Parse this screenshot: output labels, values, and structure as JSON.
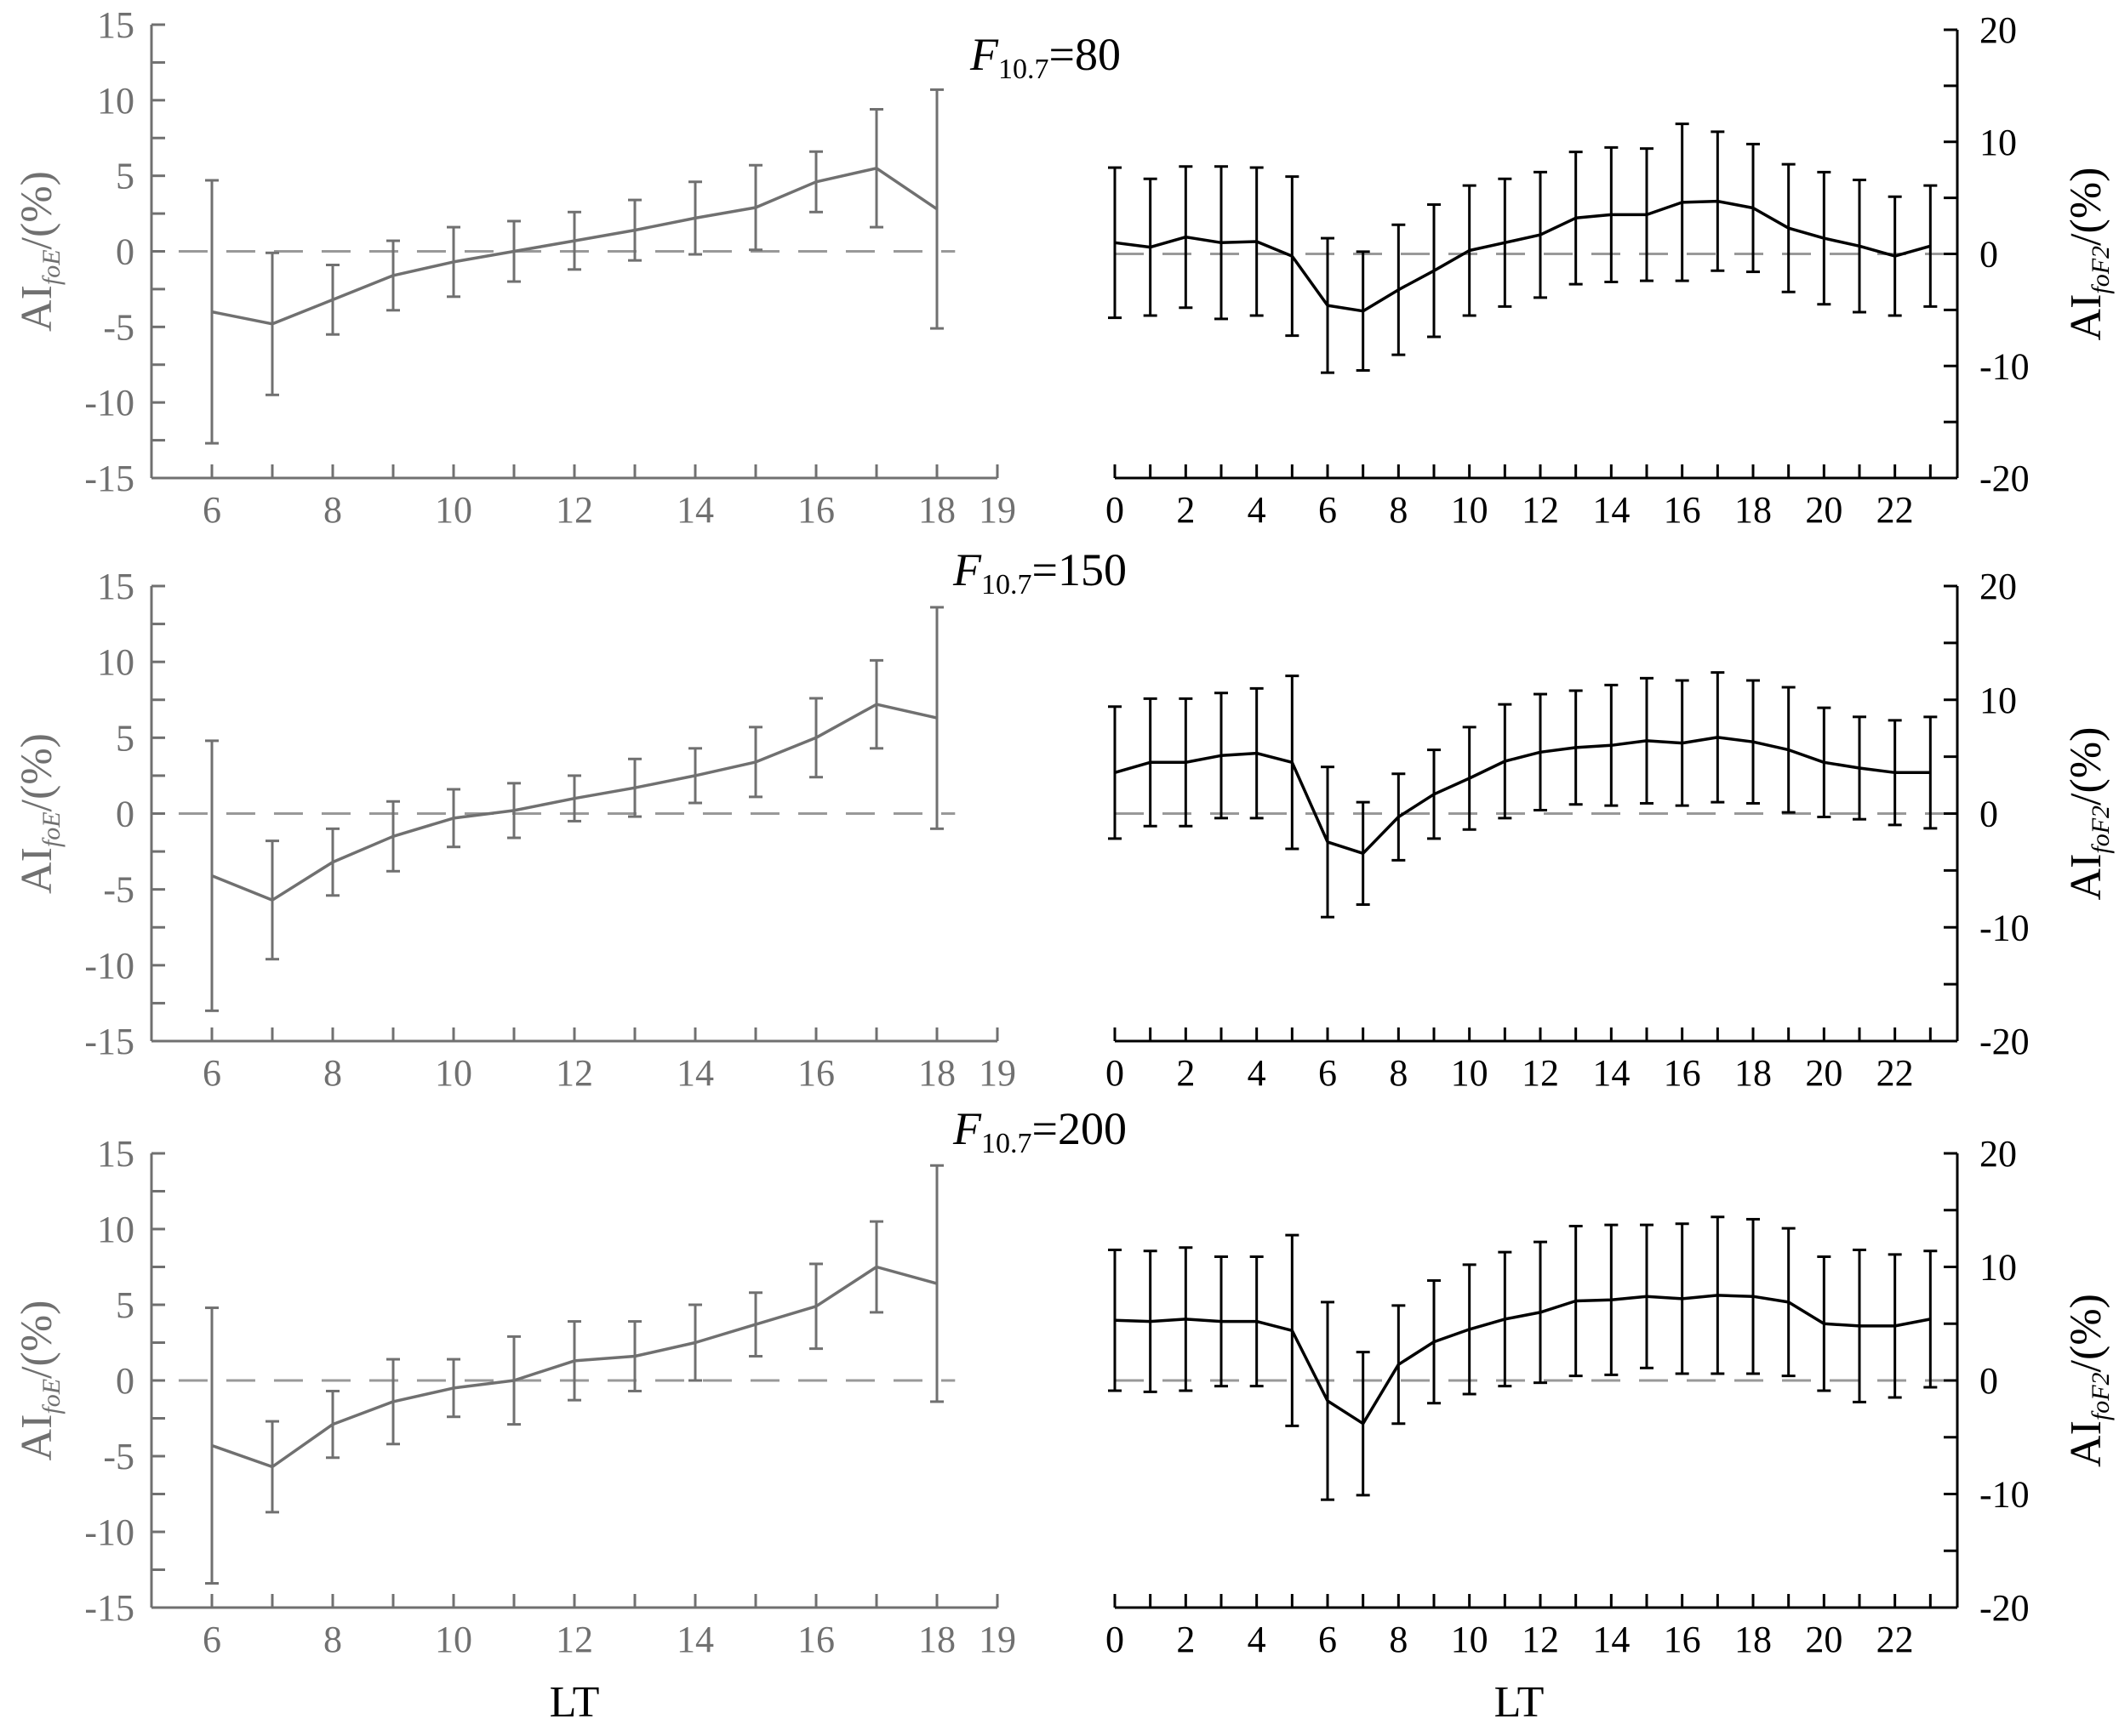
{
  "chart_data": [
    {
      "type": "line",
      "title_var": "F",
      "title_sub": "10.7",
      "title_val": "=80",
      "xlabel": "",
      "ylabel_main": "AI",
      "ylabel_sub": "foE",
      "ylabel_unit": "/(%)",
      "xlim": [
        5,
        19
      ],
      "ylim": [
        -15,
        15
      ],
      "xticks": [
        6,
        8,
        10,
        12,
        14,
        16,
        18,
        19
      ],
      "yticks": [
        -15,
        -10,
        -5,
        0,
        5,
        10,
        15
      ],
      "reference_line": 0,
      "color": "#707070",
      "x": [
        6,
        7,
        8,
        9,
        10,
        11,
        12,
        13,
        14,
        15,
        16,
        17,
        18
      ],
      "y": [
        -4.0,
        -4.8,
        -3.2,
        -1.6,
        -0.7,
        0.0,
        0.7,
        1.4,
        2.2,
        2.9,
        4.6,
        5.5,
        2.8
      ],
      "err": [
        8.7,
        4.7,
        2.3,
        2.3,
        2.3,
        2.0,
        1.9,
        2.0,
        2.4,
        2.8,
        2.0,
        3.9,
        7.9
      ]
    },
    {
      "type": "line",
      "xlabel": "",
      "ylabel_main": "AI",
      "ylabel_sub": "foF2",
      "ylabel_unit": "/(%)",
      "xlim": [
        0,
        24
      ],
      "ylim": [
        -20,
        20
      ],
      "xticks": [
        0,
        2,
        4,
        6,
        8,
        10,
        12,
        14,
        16,
        18,
        20,
        22
      ],
      "yticks": [
        -20,
        -10,
        0,
        10,
        20
      ],
      "reference_line": 0,
      "color": "#000000",
      "x": [
        0,
        1,
        2,
        3,
        4,
        5,
        6,
        7,
        8,
        9,
        10,
        11,
        12,
        13,
        14,
        15,
        16,
        17,
        18,
        19,
        20,
        21,
        22,
        23
      ],
      "y": [
        1.0,
        0.6,
        1.5,
        1.0,
        1.1,
        -0.2,
        -4.6,
        -5.1,
        -3.2,
        -1.5,
        0.3,
        1.0,
        1.7,
        3.2,
        3.5,
        3.5,
        4.6,
        4.7,
        4.1,
        2.3,
        1.4,
        0.7,
        -0.2,
        0.7
      ],
      "err": [
        6.7,
        6.1,
        6.3,
        6.8,
        6.6,
        7.1,
        6.0,
        5.3,
        5.8,
        5.9,
        5.8,
        5.7,
        5.6,
        5.9,
        6.0,
        5.9,
        7.0,
        6.2,
        5.7,
        5.7,
        5.9,
        5.9,
        5.3,
        5.4
      ]
    },
    {
      "type": "line",
      "title_var": "F",
      "title_sub": "10.7",
      "title_val": "=150",
      "xlabel": "",
      "ylabel_main": "AI",
      "ylabel_sub": "foE",
      "ylabel_unit": "/(%)",
      "xlim": [
        5,
        19
      ],
      "ylim": [
        -15,
        15
      ],
      "xticks": [
        6,
        8,
        10,
        12,
        14,
        16,
        18,
        19
      ],
      "yticks": [
        -15,
        -10,
        -5,
        0,
        5,
        10,
        15
      ],
      "reference_line": 0,
      "color": "#707070",
      "x": [
        6,
        7,
        8,
        9,
        10,
        11,
        12,
        13,
        14,
        15,
        16,
        17,
        18
      ],
      "y": [
        -4.1,
        -5.7,
        -3.2,
        -1.5,
        -0.3,
        0.2,
        1.0,
        1.7,
        2.5,
        3.4,
        5.0,
        7.2,
        6.3
      ],
      "err": [
        8.9,
        3.9,
        2.2,
        2.3,
        1.9,
        1.8,
        1.5,
        1.9,
        1.8,
        2.3,
        2.6,
        2.9,
        7.3
      ]
    },
    {
      "type": "line",
      "xlabel": "",
      "ylabel_main": "AI",
      "ylabel_sub": "foF2",
      "ylabel_unit": "/(%)",
      "xlim": [
        0,
        24
      ],
      "ylim": [
        -20,
        20
      ],
      "xticks": [
        0,
        2,
        4,
        6,
        8,
        10,
        12,
        14,
        16,
        18,
        20,
        22
      ],
      "yticks": [
        -20,
        -10,
        0,
        10,
        20
      ],
      "reference_line": 0,
      "color": "#000000",
      "x": [
        0,
        1,
        2,
        3,
        4,
        5,
        6,
        7,
        8,
        9,
        10,
        11,
        12,
        13,
        14,
        15,
        16,
        17,
        18,
        19,
        20,
        21,
        22,
        23
      ],
      "y": [
        3.6,
        4.5,
        4.5,
        5.1,
        5.3,
        4.5,
        -2.5,
        -3.5,
        -0.3,
        1.7,
        3.1,
        4.6,
        5.4,
        5.8,
        6.0,
        6.4,
        6.2,
        6.7,
        6.3,
        5.6,
        4.5,
        4.0,
        3.6,
        3.6
      ],
      "err": [
        5.8,
        5.6,
        5.6,
        5.5,
        5.7,
        7.6,
        6.6,
        4.5,
        3.8,
        3.9,
        4.5,
        5.0,
        5.1,
        5.0,
        5.3,
        5.5,
        5.5,
        5.7,
        5.4,
        5.5,
        4.8,
        4.5,
        4.6,
        4.9
      ]
    },
    {
      "type": "line",
      "title_var": "F",
      "title_sub": "10.7",
      "title_val": "=200",
      "xlabel": "LT",
      "ylabel_main": "AI",
      "ylabel_sub": "foE",
      "ylabel_unit": "/(%)",
      "xlim": [
        5,
        19
      ],
      "ylim": [
        -15,
        15
      ],
      "xticks": [
        6,
        8,
        10,
        12,
        14,
        16,
        18,
        19
      ],
      "yticks": [
        -15,
        -10,
        -5,
        0,
        5,
        10,
        15
      ],
      "reference_line": 0,
      "color": "#707070",
      "x": [
        6,
        7,
        8,
        9,
        10,
        11,
        12,
        13,
        14,
        15,
        16,
        17,
        18
      ],
      "y": [
        -4.3,
        -5.7,
        -2.9,
        -1.4,
        -0.5,
        0.0,
        1.3,
        1.6,
        2.5,
        3.7,
        4.9,
        7.5,
        6.4
      ],
      "err": [
        9.1,
        3.0,
        2.2,
        2.8,
        1.9,
        2.9,
        2.6,
        2.3,
        2.5,
        2.1,
        2.8,
        3.0,
        7.8
      ]
    },
    {
      "type": "line",
      "xlabel": "LT",
      "ylabel_main": "AI",
      "ylabel_sub": "foF2",
      "ylabel_unit": "/(%)",
      "xlim": [
        0,
        24
      ],
      "ylim": [
        -20,
        20
      ],
      "xticks": [
        0,
        2,
        4,
        6,
        8,
        10,
        12,
        14,
        16,
        18,
        20,
        22
      ],
      "yticks": [
        -20,
        -10,
        0,
        10,
        20
      ],
      "reference_line": 0,
      "color": "#000000",
      "x": [
        0,
        1,
        2,
        3,
        4,
        5,
        6,
        7,
        8,
        9,
        10,
        11,
        12,
        13,
        14,
        15,
        16,
        17,
        18,
        19,
        20,
        21,
        22,
        23
      ],
      "y": [
        5.3,
        5.2,
        5.4,
        5.2,
        5.2,
        4.4,
        -1.8,
        -3.8,
        1.4,
        3.4,
        4.5,
        5.4,
        6.0,
        7.0,
        7.1,
        7.4,
        7.2,
        7.5,
        7.4,
        6.9,
        5.0,
        4.8,
        4.8,
        5.4
      ],
      "err": [
        6.2,
        6.2,
        6.3,
        5.7,
        5.7,
        8.4,
        8.7,
        6.3,
        5.2,
        5.4,
        5.7,
        5.9,
        6.2,
        6.6,
        6.6,
        6.3,
        6.6,
        6.9,
        6.8,
        6.5,
        5.9,
        6.7,
        6.3,
        6.0
      ]
    }
  ]
}
